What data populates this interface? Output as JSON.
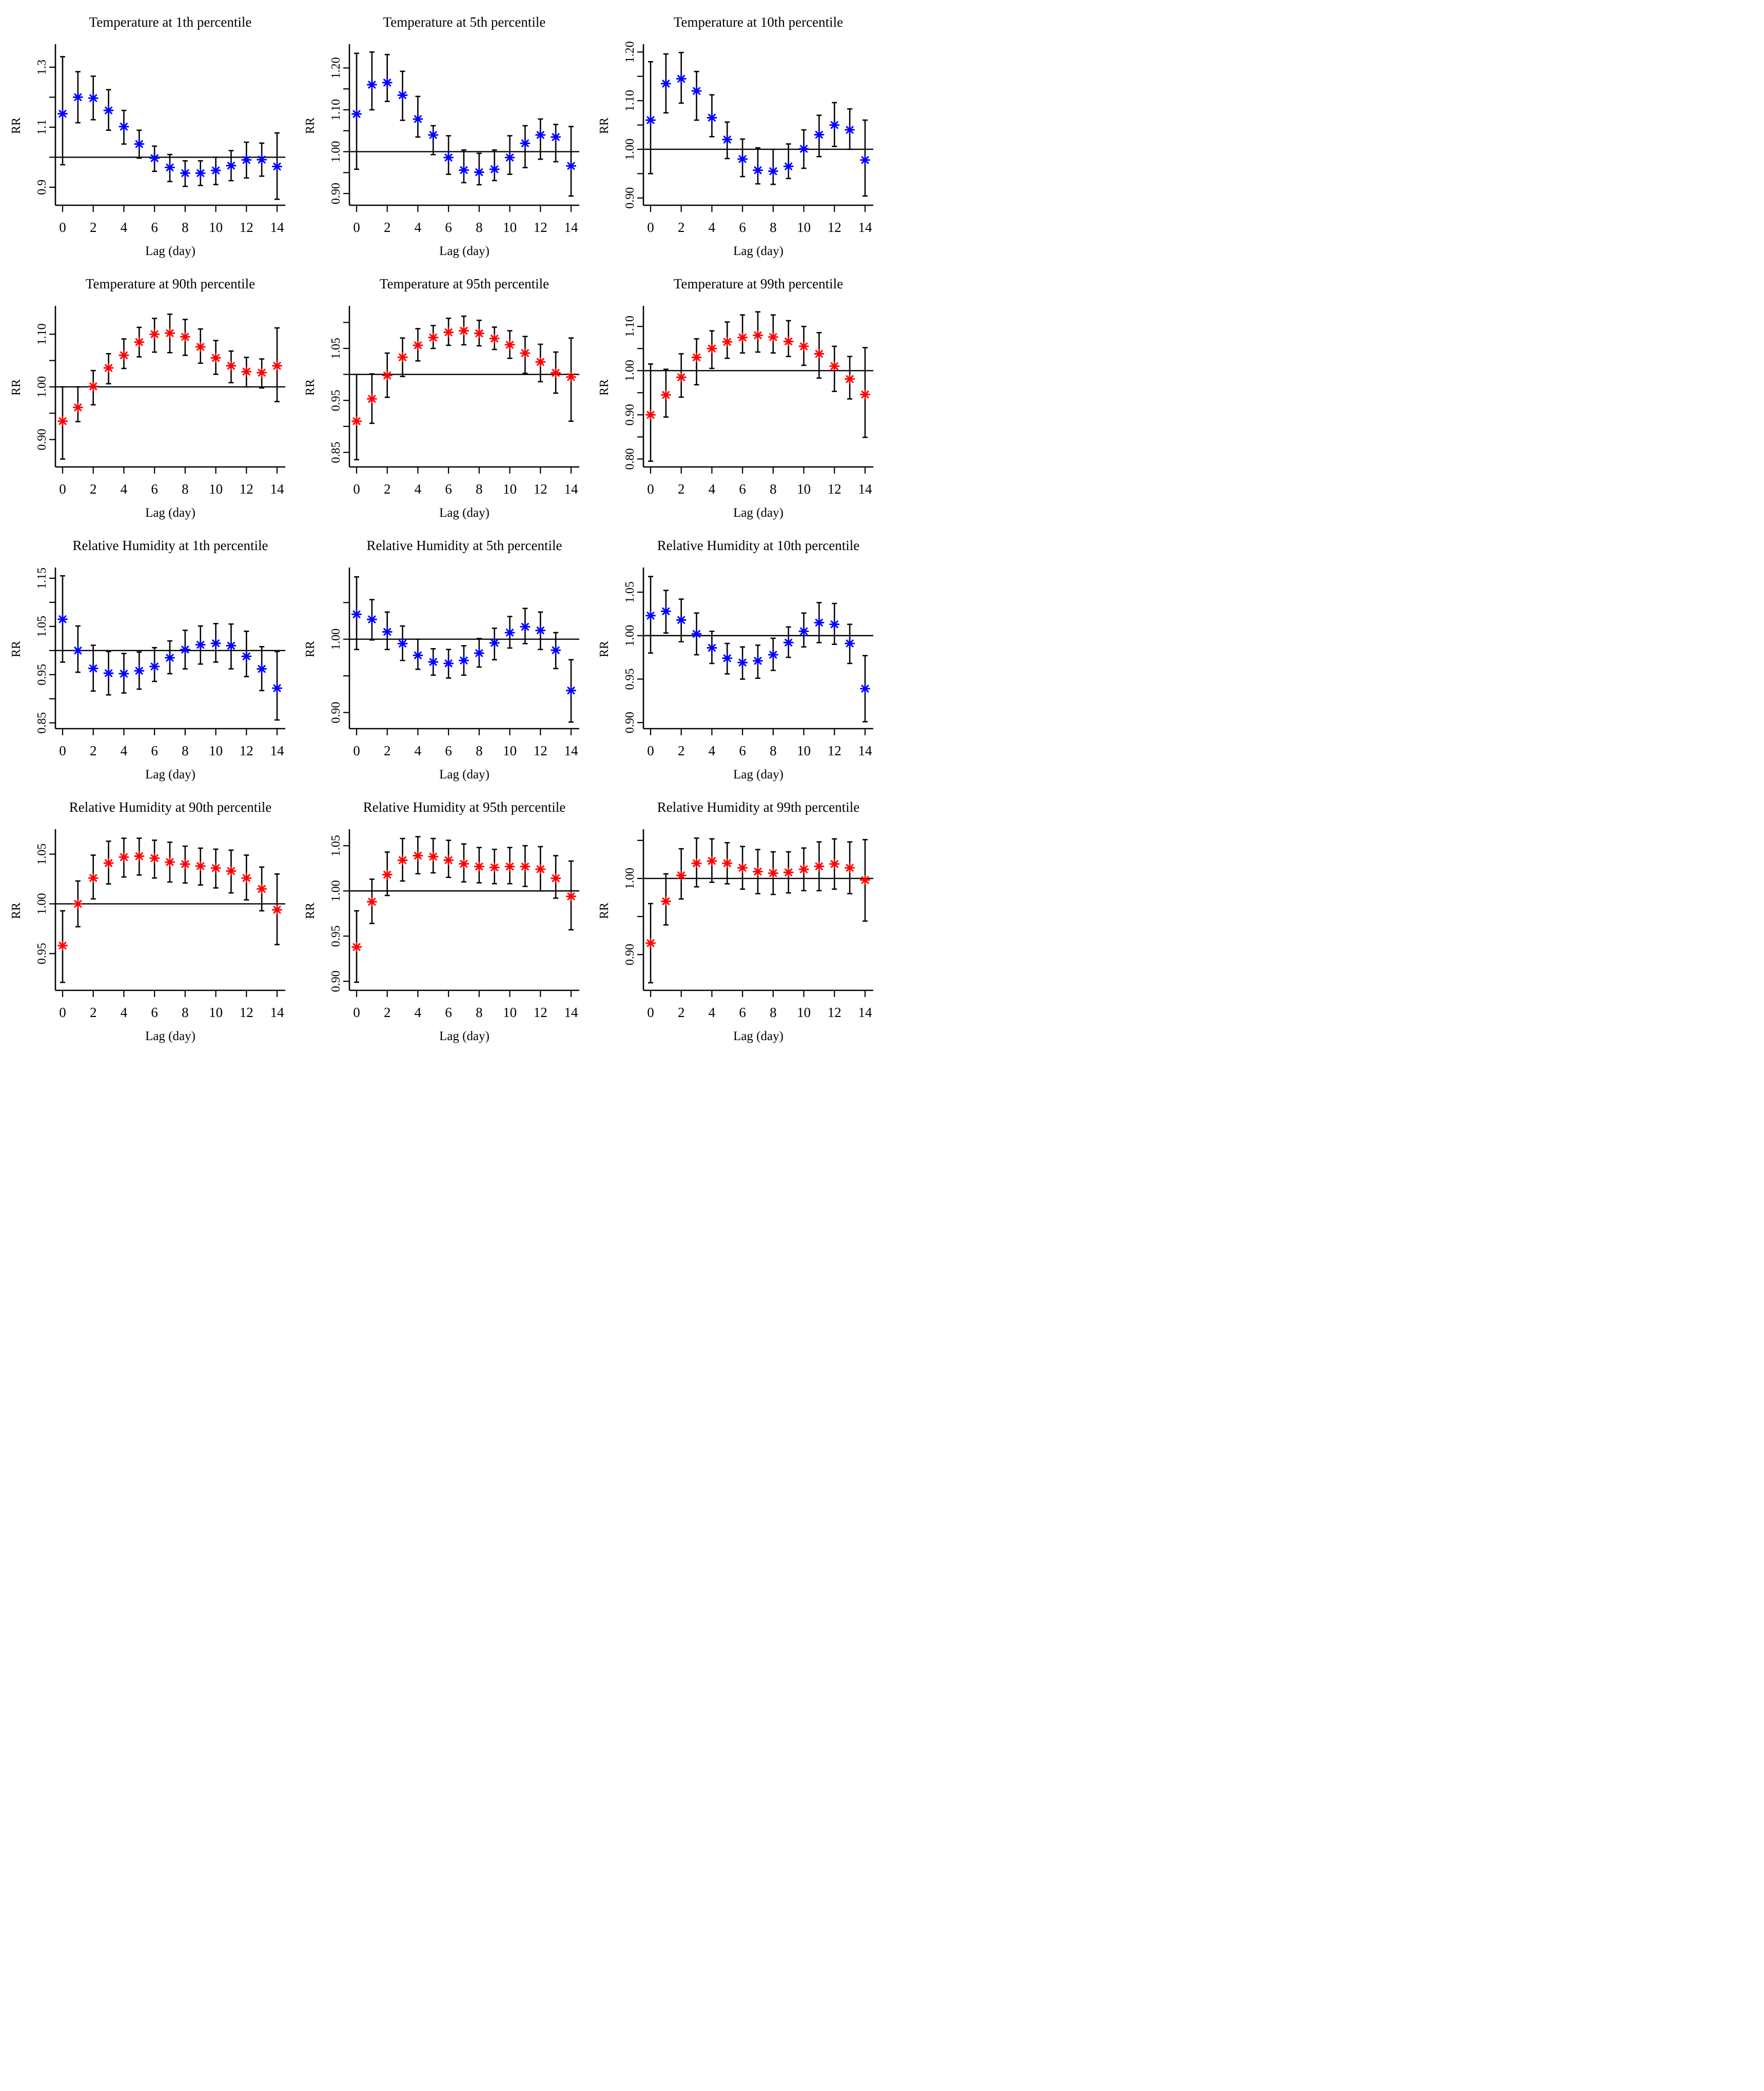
{
  "figure": {
    "xlabel": "Lag (day)",
    "ylabel": "RR",
    "x_ticks": [
      0,
      2,
      4,
      6,
      8,
      10,
      12,
      14
    ],
    "marker": "asterisk-8-point",
    "colors": {
      "cold_percentile_series": "#0000FF",
      "heat_percentile_series": "#FF0000",
      "axis_and_ci": "#000000",
      "background": "#FFFFFF"
    }
  },
  "chart_data": [
    {
      "type": "scatter",
      "title": "Temperature at 1th percentile",
      "xlabel": "Lag (day)",
      "ylabel": "RR",
      "color": "#0000FF",
      "refline_y": 1.0,
      "x": [
        0,
        1,
        2,
        3,
        4,
        5,
        6,
        7,
        8,
        9,
        10,
        11,
        12,
        13,
        14
      ],
      "estimate": [
        1.145,
        1.2,
        1.197,
        1.156,
        1.102,
        1.044,
        0.997,
        0.966,
        0.947,
        0.947,
        0.956,
        0.972,
        0.991,
        0.992,
        0.969
      ],
      "ci_low": [
        0.975,
        1.115,
        1.125,
        1.09,
        1.044,
        0.997,
        0.953,
        0.919,
        0.903,
        0.906,
        0.909,
        0.922,
        0.931,
        0.937,
        0.86
      ],
      "ci_high": [
        1.335,
        1.285,
        1.27,
        1.225,
        1.156,
        1.09,
        1.037,
        1.009,
        0.988,
        0.988,
        1.0,
        1.022,
        1.05,
        1.047,
        1.081
      ],
      "ylim": [
        0.84,
        1.37
      ],
      "yticks": {
        "values": [
          0.9,
          1.1,
          1.3
        ],
        "labels": [
          "0.9",
          "1.1",
          "1.3"
        ]
      },
      "yticks_minor": [
        1.0,
        1.2
      ]
    },
    {
      "type": "scatter",
      "title": "Temperature at 5th percentile",
      "xlabel": "Lag (day)",
      "ylabel": "RR",
      "color": "#0000FF",
      "refline_y": 1.0,
      "x": [
        0,
        1,
        2,
        3,
        4,
        5,
        6,
        7,
        8,
        9,
        10,
        11,
        12,
        13,
        14
      ],
      "estimate": [
        1.09,
        1.16,
        1.165,
        1.135,
        1.078,
        1.04,
        0.986,
        0.956,
        0.951,
        0.958,
        0.986,
        1.02,
        1.04,
        1.035,
        0.966
      ],
      "ci_low": [
        0.958,
        1.1,
        1.12,
        1.075,
        1.035,
        0.993,
        0.946,
        0.926,
        0.921,
        0.931,
        0.946,
        0.962,
        0.982,
        0.976,
        0.894
      ],
      "ci_high": [
        1.235,
        1.238,
        1.232,
        1.192,
        1.132,
        1.062,
        1.038,
        1.004,
        0.996,
        1.004,
        1.038,
        1.062,
        1.078,
        1.065,
        1.06
      ],
      "ylim": [
        0.872,
        1.252
      ],
      "yticks": {
        "values": [
          0.9,
          1.0,
          1.1,
          1.2
        ],
        "labels": [
          "0.90",
          "1.00",
          "1.10",
          "1.20"
        ]
      },
      "yticks_minor": [
        0.95,
        1.05,
        1.15
      ]
    },
    {
      "type": "scatter",
      "title": "Temperature at 10th percentile",
      "xlabel": "Lag (day)",
      "ylabel": "RR",
      "color": "#0000FF",
      "refline_y": 1.0,
      "x": [
        0,
        1,
        2,
        3,
        4,
        5,
        6,
        7,
        8,
        9,
        10,
        11,
        12,
        13,
        14
      ],
      "estimate": [
        1.06,
        1.135,
        1.145,
        1.12,
        1.065,
        1.02,
        0.98,
        0.957,
        0.955,
        0.965,
        1.001,
        1.03,
        1.05,
        1.04,
        0.978
      ],
      "ci_low": [
        0.95,
        1.075,
        1.095,
        1.06,
        1.026,
        0.981,
        0.944,
        0.929,
        0.928,
        0.94,
        0.961,
        0.985,
        1.006,
        1.0,
        0.904
      ],
      "ci_high": [
        1.18,
        1.196,
        1.199,
        1.16,
        1.112,
        1.056,
        1.021,
        1.003,
        1.0,
        1.011,
        1.04,
        1.07,
        1.096,
        1.083,
        1.06
      ],
      "ylim": [
        0.885,
        1.212
      ],
      "yticks": {
        "values": [
          0.9,
          1.0,
          1.1,
          1.2
        ],
        "labels": [
          "0.90",
          "1.00",
          "1.10",
          "1.20"
        ]
      },
      "yticks_minor": [
        0.95,
        1.05,
        1.15
      ]
    },
    {
      "type": "scatter",
      "title": "Temperature at 90th percentile",
      "xlabel": "Lag (day)",
      "ylabel": "RR",
      "color": "#FF0000",
      "refline_y": 1.0,
      "x": [
        0,
        1,
        2,
        3,
        4,
        5,
        6,
        7,
        8,
        9,
        10,
        11,
        12,
        13,
        14
      ],
      "estimate": [
        0.935,
        0.961,
        1.001,
        1.036,
        1.06,
        1.085,
        1.1,
        1.102,
        1.095,
        1.076,
        1.055,
        1.04,
        1.029,
        1.027,
        1.04
      ],
      "ci_low": [
        0.863,
        0.934,
        0.966,
        1.006,
        1.035,
        1.057,
        1.066,
        1.065,
        1.06,
        1.045,
        1.024,
        1.008,
        1.0,
        0.998,
        0.972
      ],
      "ci_high": [
        1.0,
        1.0,
        1.031,
        1.063,
        1.091,
        1.113,
        1.13,
        1.138,
        1.128,
        1.11,
        1.088,
        1.068,
        1.056,
        1.053,
        1.112
      ],
      "ylim": [
        0.848,
        1.15
      ],
      "yticks": {
        "values": [
          0.9,
          1.0,
          1.1
        ],
        "labels": [
          "0.90",
          "1.00",
          "1.10"
        ]
      },
      "yticks_minor": [
        0.95,
        1.05
      ]
    },
    {
      "type": "scatter",
      "title": "Temperature at 95th percentile",
      "xlabel": "Lag (day)",
      "ylabel": "RR",
      "color": "#FF0000",
      "refline_y": 1.0,
      "x": [
        0,
        1,
        2,
        3,
        4,
        5,
        6,
        7,
        8,
        9,
        10,
        11,
        12,
        13,
        14
      ],
      "estimate": [
        0.91,
        0.953,
        0.998,
        1.033,
        1.056,
        1.071,
        1.081,
        1.084,
        1.079,
        1.069,
        1.057,
        1.041,
        1.024,
        1.003,
        0.995
      ],
      "ci_low": [
        0.836,
        0.906,
        0.956,
        0.996,
        1.026,
        1.05,
        1.056,
        1.057,
        1.055,
        1.048,
        1.031,
        1.002,
        0.986,
        0.964,
        0.91
      ],
      "ci_high": [
        1.0,
        1.001,
        1.041,
        1.07,
        1.088,
        1.094,
        1.108,
        1.112,
        1.104,
        1.091,
        1.084,
        1.073,
        1.058,
        1.043,
        1.07
      ],
      "ylim": [
        0.822,
        1.128
      ],
      "yticks": {
        "values": [
          0.85,
          0.95,
          1.05
        ],
        "labels": [
          "0.85",
          "0.95",
          "1.05"
        ]
      },
      "yticks_minor": [
        0.9,
        1.0,
        1.1
      ]
    },
    {
      "type": "scatter",
      "title": "Temperature at 99th percentile",
      "xlabel": "Lag (day)",
      "ylabel": "RR",
      "color": "#FF0000",
      "refline_y": 1.0,
      "x": [
        0,
        1,
        2,
        3,
        4,
        5,
        6,
        7,
        8,
        9,
        10,
        11,
        12,
        13,
        14
      ],
      "estimate": [
        0.9,
        0.945,
        0.985,
        1.03,
        1.05,
        1.065,
        1.075,
        1.08,
        1.076,
        1.066,
        1.055,
        1.038,
        1.01,
        0.981,
        0.946
      ],
      "ci_low": [
        0.795,
        0.895,
        0.94,
        0.968,
        1.005,
        1.028,
        1.04,
        1.042,
        1.04,
        1.032,
        1.012,
        0.983,
        0.953,
        0.936,
        0.849
      ],
      "ci_high": [
        1.015,
        1.003,
        1.038,
        1.072,
        1.09,
        1.11,
        1.126,
        1.133,
        1.126,
        1.113,
        1.1,
        1.086,
        1.055,
        1.032,
        1.052
      ],
      "ylim": [
        0.782,
        1.142
      ],
      "yticks": {
        "values": [
          0.8,
          0.9,
          1.0,
          1.1
        ],
        "labels": [
          "0.80",
          "0.90",
          "1.00",
          "1.10"
        ]
      },
      "yticks_minor": [
        0.85,
        0.95,
        1.05
      ]
    },
    {
      "type": "scatter",
      "title": "Relative Humidity at 1th percentile",
      "xlabel": "Lag (day)",
      "ylabel": "RR",
      "color": "#0000FF",
      "refline_y": 1.0,
      "x": [
        0,
        1,
        2,
        3,
        4,
        5,
        6,
        7,
        8,
        9,
        10,
        11,
        12,
        13,
        14
      ],
      "estimate": [
        1.065,
        1.0,
        0.963,
        0.953,
        0.952,
        0.958,
        0.967,
        0.985,
        1.002,
        1.012,
        1.015,
        1.01,
        0.988,
        0.962,
        0.922
      ],
      "ci_low": [
        0.976,
        0.955,
        0.916,
        0.908,
        0.912,
        0.92,
        0.936,
        0.952,
        0.962,
        0.972,
        0.976,
        0.962,
        0.946,
        0.917,
        0.856
      ],
      "ci_high": [
        1.155,
        1.051,
        1.011,
        0.998,
        0.994,
        0.997,
        1.006,
        1.02,
        1.042,
        1.051,
        1.056,
        1.055,
        1.04,
        1.008,
        0.998
      ],
      "ylim": [
        0.838,
        1.168
      ],
      "yticks": {
        "values": [
          0.85,
          0.95,
          1.05,
          1.15
        ],
        "labels": [
          "0.85",
          "0.95",
          "1.05",
          "1.15"
        ]
      },
      "yticks_minor": [
        0.9,
        1.0,
        1.1
      ]
    },
    {
      "type": "scatter",
      "title": "Relative Humidity at 5th percentile",
      "xlabel": "Lag (day)",
      "ylabel": "RR",
      "color": "#0000FF",
      "refline_y": 1.0,
      "x": [
        0,
        1,
        2,
        3,
        4,
        5,
        6,
        7,
        8,
        9,
        10,
        11,
        12,
        13,
        14
      ],
      "estimate": [
        1.034,
        1.027,
        1.01,
        0.994,
        0.978,
        0.969,
        0.967,
        0.971,
        0.981,
        0.995,
        1.009,
        1.017,
        1.012,
        0.985,
        0.93
      ],
      "ci_low": [
        0.986,
        0.999,
        0.986,
        0.971,
        0.959,
        0.951,
        0.947,
        0.951,
        0.962,
        0.972,
        0.988,
        0.994,
        0.986,
        0.96,
        0.887
      ],
      "ci_high": [
        1.085,
        1.054,
        1.037,
        1.018,
        1.0,
        0.987,
        0.986,
        0.991,
        1.001,
        1.015,
        1.031,
        1.042,
        1.037,
        1.009,
        0.972
      ],
      "ylim": [
        0.878,
        1.095
      ],
      "yticks": {
        "values": [
          0.9,
          1.0
        ],
        "labels": [
          "0.90",
          "1.00"
        ]
      },
      "yticks_minor": [
        0.95,
        1.05
      ]
    },
    {
      "type": "scatter",
      "title": "Relative Humidity at 10th percentile",
      "xlabel": "Lag (day)",
      "ylabel": "RR",
      "color": "#0000FF",
      "refline_y": 1.0,
      "x": [
        0,
        1,
        2,
        3,
        4,
        5,
        6,
        7,
        8,
        9,
        10,
        11,
        12,
        13,
        14
      ],
      "estimate": [
        1.023,
        1.028,
        1.018,
        1.002,
        0.986,
        0.974,
        0.969,
        0.971,
        0.978,
        0.992,
        1.005,
        1.015,
        1.013,
        0.991,
        0.939
      ],
      "ci_low": [
        0.98,
        1.003,
        0.993,
        0.978,
        0.968,
        0.956,
        0.95,
        0.951,
        0.96,
        0.975,
        0.987,
        0.992,
        0.99,
        0.968,
        0.901
      ],
      "ci_high": [
        1.068,
        1.052,
        1.042,
        1.026,
        1.005,
        0.991,
        0.987,
        0.989,
        0.997,
        1.01,
        1.026,
        1.038,
        1.037,
        1.013,
        0.977
      ],
      "ylim": [
        0.893,
        1.076
      ],
      "yticks": {
        "values": [
          0.9,
          0.95,
          1.0,
          1.05
        ],
        "labels": [
          "0.90",
          "0.95",
          "1.00",
          "1.05"
        ]
      },
      "yticks_minor": []
    },
    {
      "type": "scatter",
      "title": "Relative Humidity at 90th percentile",
      "xlabel": "Lag (day)",
      "ylabel": "RR",
      "color": "#FF0000",
      "refline_y": 1.0,
      "x": [
        0,
        1,
        2,
        3,
        4,
        5,
        6,
        7,
        8,
        9,
        10,
        11,
        12,
        13,
        14
      ],
      "estimate": [
        0.958,
        1.0,
        1.026,
        1.041,
        1.047,
        1.048,
        1.046,
        1.042,
        1.04,
        1.038,
        1.036,
        1.033,
        1.026,
        1.015,
        0.994
      ],
      "ci_low": [
        0.921,
        0.977,
        1.005,
        1.02,
        1.027,
        1.029,
        1.026,
        1.022,
        1.021,
        1.019,
        1.016,
        1.011,
        1.004,
        0.993,
        0.959
      ],
      "ci_high": [
        0.993,
        1.023,
        1.049,
        1.063,
        1.066,
        1.066,
        1.064,
        1.062,
        1.058,
        1.056,
        1.055,
        1.054,
        1.049,
        1.037,
        1.03
      ],
      "ylim": [
        0.913,
        1.073
      ],
      "yticks": {
        "values": [
          0.95,
          1.0,
          1.05
        ],
        "labels": [
          "0.95",
          "1.00",
          "1.05"
        ]
      },
      "yticks_minor": []
    },
    {
      "type": "scatter",
      "title": "Relative Humidity at 95th percentile",
      "xlabel": "Lag (day)",
      "ylabel": "RR",
      "color": "#FF0000",
      "refline_y": 1.0,
      "x": [
        0,
        1,
        2,
        3,
        4,
        5,
        6,
        7,
        8,
        9,
        10,
        11,
        12,
        13,
        14
      ],
      "estimate": [
        0.938,
        0.988,
        1.018,
        1.034,
        1.039,
        1.038,
        1.034,
        1.03,
        1.027,
        1.026,
        1.027,
        1.027,
        1.024,
        1.014,
        0.994
      ],
      "ci_low": [
        0.899,
        0.964,
        0.995,
        1.011,
        1.019,
        1.02,
        1.015,
        1.01,
        1.009,
        1.008,
        1.008,
        1.005,
        1.0,
        0.992,
        0.957
      ],
      "ci_high": [
        0.978,
        1.013,
        1.043,
        1.058,
        1.06,
        1.058,
        1.056,
        1.052,
        1.048,
        1.046,
        1.048,
        1.05,
        1.049,
        1.039,
        1.033
      ],
      "ylim": [
        0.89,
        1.066
      ],
      "yticks": {
        "values": [
          0.9,
          0.95,
          1.0,
          1.05
        ],
        "labels": [
          "0.90",
          "0.95",
          "1.00",
          "1.05"
        ]
      },
      "yticks_minor": []
    },
    {
      "type": "scatter",
      "title": "Relative Humidity at 99th percentile",
      "xlabel": "Lag (day)",
      "ylabel": "RR",
      "color": "#FF0000",
      "refline_y": 1.0,
      "x": [
        0,
        1,
        2,
        3,
        4,
        5,
        6,
        7,
        8,
        9,
        10,
        11,
        12,
        13,
        14
      ],
      "estimate": [
        0.915,
        0.97,
        1.004,
        1.02,
        1.023,
        1.02,
        1.014,
        1.009,
        1.007,
        1.008,
        1.012,
        1.016,
        1.019,
        1.014,
        0.998
      ],
      "ci_low": [
        0.863,
        0.939,
        0.973,
        0.989,
        0.995,
        0.993,
        0.986,
        0.98,
        0.979,
        0.981,
        0.984,
        0.984,
        0.986,
        0.98,
        0.944
      ],
      "ci_high": [
        0.967,
        1.006,
        1.039,
        1.053,
        1.052,
        1.047,
        1.042,
        1.038,
        1.035,
        1.035,
        1.04,
        1.048,
        1.052,
        1.048,
        1.051
      ],
      "ylim": [
        0.853,
        1.062
      ],
      "yticks": {
        "values": [
          0.9,
          1.0
        ],
        "labels": [
          "0.90",
          "1.00"
        ]
      },
      "yticks_minor": [
        0.95,
        1.05
      ]
    }
  ]
}
